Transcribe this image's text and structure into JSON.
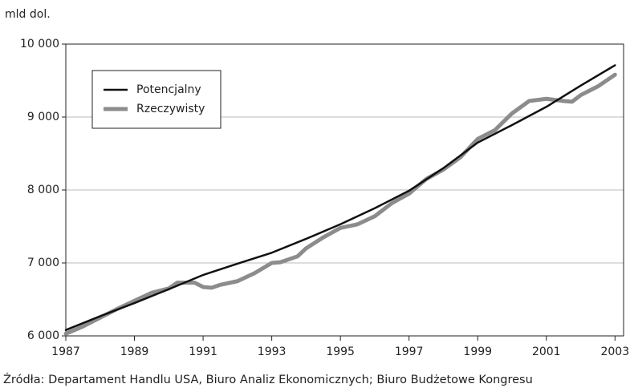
{
  "chart_data": {
    "type": "line",
    "y_unit_label": "mld dol.",
    "source": "Źródła: Departament Handlu USA, Biuro Analiz Ekonomicznych; Biuro Budżetowe Kongresu",
    "xlim": [
      1987,
      2003.25
    ],
    "xticks": [
      1987,
      1989,
      1991,
      1993,
      1995,
      1997,
      1999,
      2001,
      2003
    ],
    "ylim": [
      6000,
      10000
    ],
    "yticks": [
      {
        "value": 6000,
        "label": "6 000"
      },
      {
        "value": 7000,
        "label": "7 000"
      },
      {
        "value": 8000,
        "label": "8 000"
      },
      {
        "value": 9000,
        "label": "9 000"
      },
      {
        "value": 10000,
        "label": "10 000"
      }
    ],
    "grid": true,
    "legend": "upper left",
    "series": [
      {
        "name": "Potencjalny",
        "color": "#111111",
        "width": 2.5,
        "x": [
          1987,
          1988,
          1989,
          1990,
          1991,
          1992,
          1993,
          1994,
          1995,
          1996,
          1997,
          1998,
          1999,
          2000,
          2001,
          2002,
          2003
        ],
        "values": [
          6080,
          6270,
          6450,
          6640,
          6835,
          6990,
          7140,
          7330,
          7530,
          7750,
          7990,
          8300,
          8650,
          8890,
          9140,
          9430,
          9710
        ]
      },
      {
        "name": "Rzeczywisty",
        "color": "#8c8c8c",
        "width": 5,
        "x": [
          1987,
          1987.5,
          1988,
          1988.5,
          1989,
          1989.5,
          1990,
          1990.25,
          1990.75,
          1991,
          1991.25,
          1991.5,
          1992,
          1992.5,
          1993,
          1993.25,
          1993.75,
          1994,
          1994.5,
          1995,
          1995.5,
          1996,
          1996.5,
          1997,
          1997.5,
          1998,
          1998.5,
          1999,
          1999.5,
          2000,
          2000.5,
          2001,
          2001.5,
          2001.75,
          2002,
          2002.5,
          2003
        ],
        "values": [
          6030,
          6130,
          6250,
          6370,
          6480,
          6590,
          6650,
          6730,
          6730,
          6670,
          6660,
          6700,
          6750,
          6860,
          7000,
          7010,
          7090,
          7200,
          7350,
          7480,
          7530,
          7640,
          7820,
          7950,
          8150,
          8280,
          8450,
          8700,
          8820,
          9050,
          9220,
          9250,
          9220,
          9210,
          9300,
          9420,
          9580
        ]
      }
    ]
  }
}
